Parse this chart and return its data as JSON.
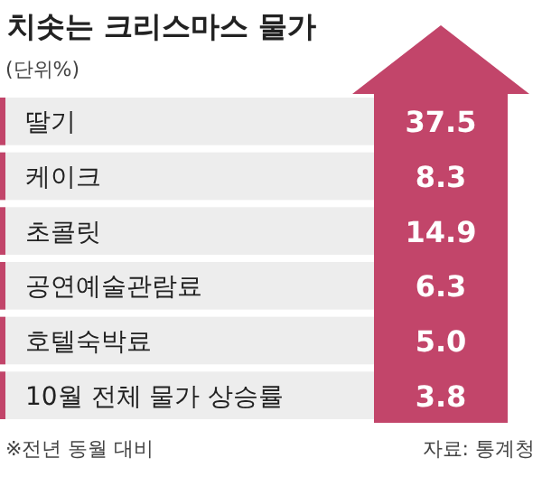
{
  "chart_data": {
    "type": "other",
    "title": "치솟는 크리스마스 물가",
    "subtitle": "(단위%)",
    "categories": [
      "딸기",
      "케이크",
      "초콜릿",
      "공연예술관람료",
      "호텔숙박료",
      "10월 전체 물가 상승률"
    ],
    "values": [
      37.5,
      8.3,
      14.9,
      6.3,
      5.0,
      3.8
    ],
    "data_labels": true,
    "value_labels": [
      "37.5",
      "8.3",
      "14.9",
      "6.3",
      "5.0",
      "3.8"
    ],
    "color": "#c2456a",
    "annotations": [
      "※전년 동월 대비",
      "자료: 통계청"
    ]
  }
}
